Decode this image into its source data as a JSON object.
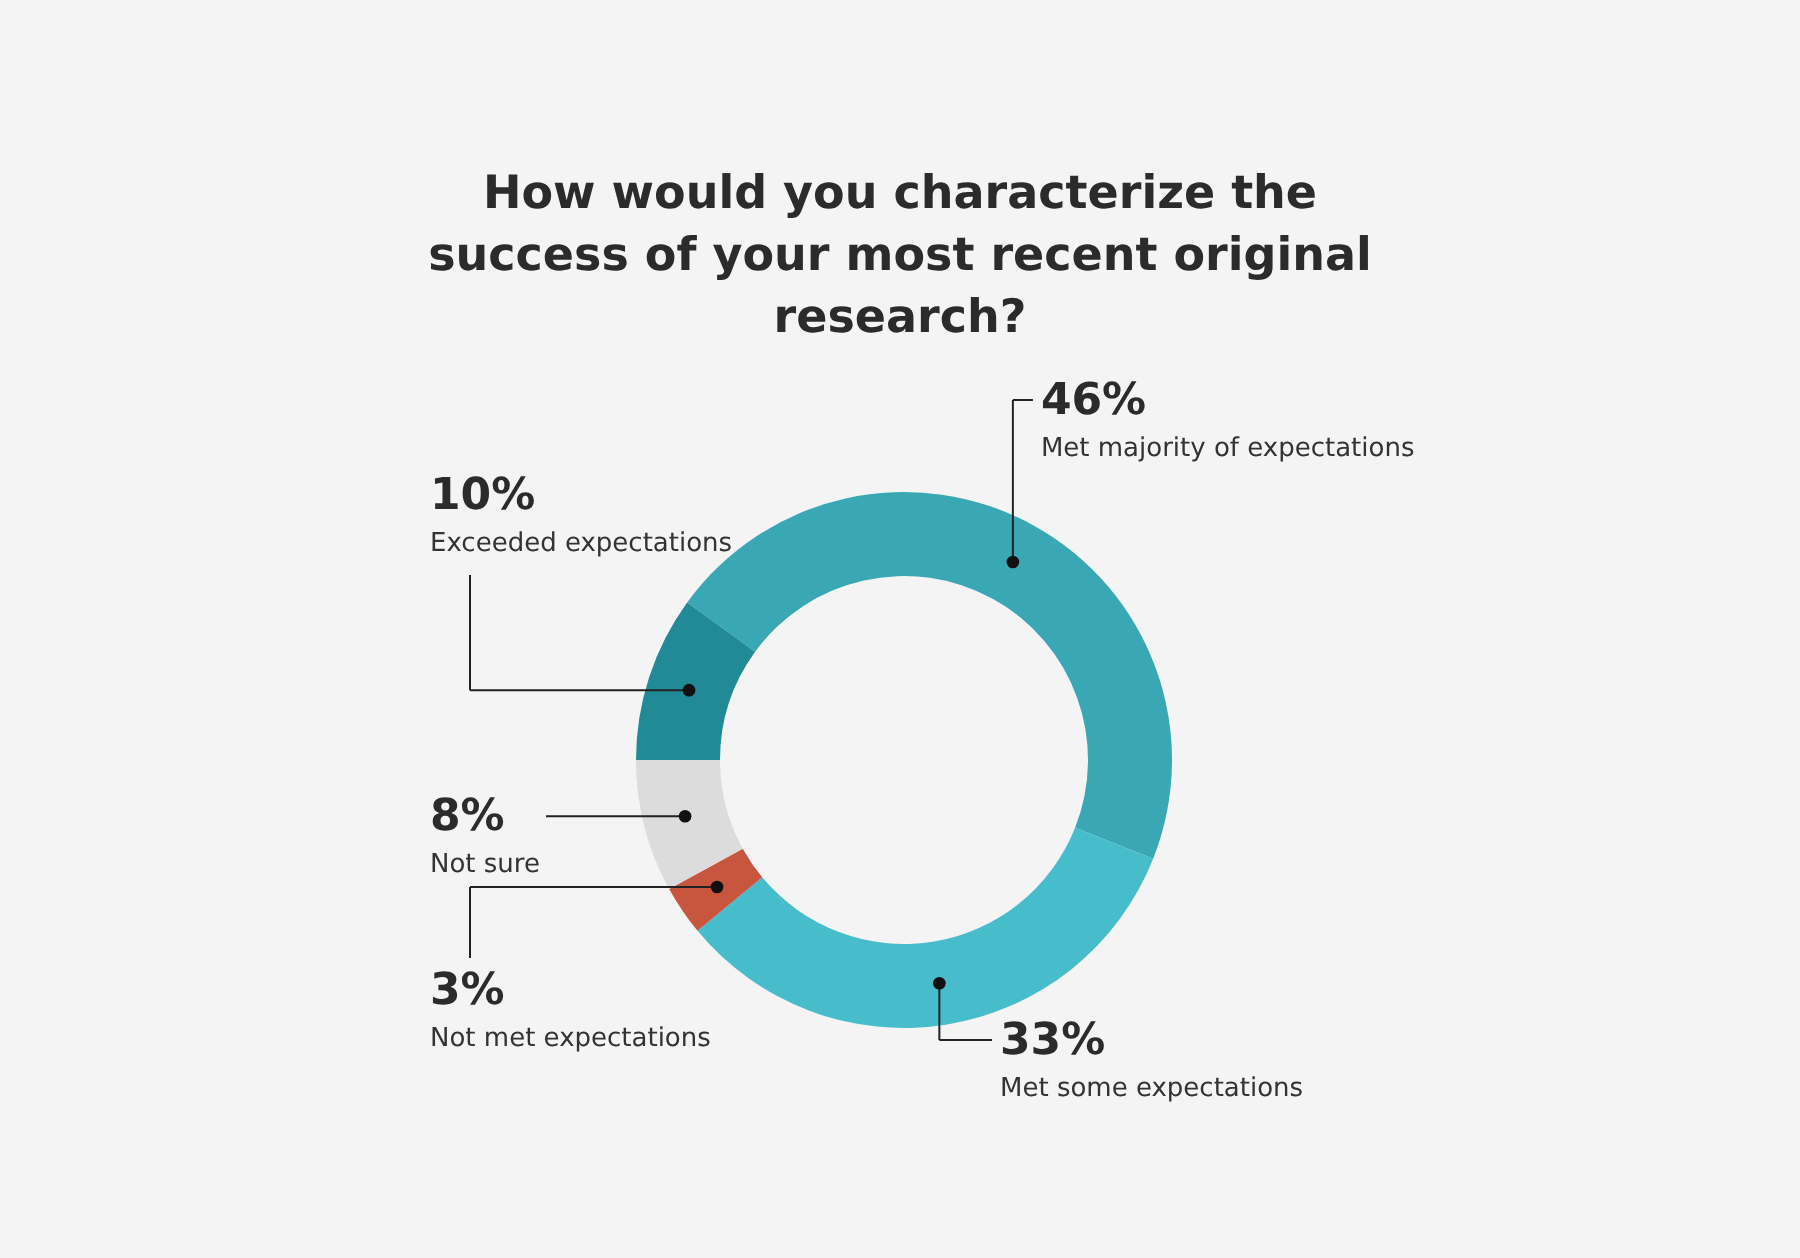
{
  "chart_data": {
    "type": "donut",
    "title": "How would you characterize the success of your most recent original research?",
    "categories": [
      "Met majority of expectations",
      "Met some expectations",
      "Not met expectations",
      "Not sure",
      "Exceeded expectations"
    ],
    "values": [
      46,
      33,
      3,
      8,
      10
    ],
    "colors": [
      "#3aa7b4",
      "#47bccb",
      "#c8553d",
      "#dcdcdc",
      "#228a97"
    ],
    "value_labels": [
      "46%",
      "33%",
      "3%",
      "8%",
      "10%"
    ],
    "legend": false
  }
}
